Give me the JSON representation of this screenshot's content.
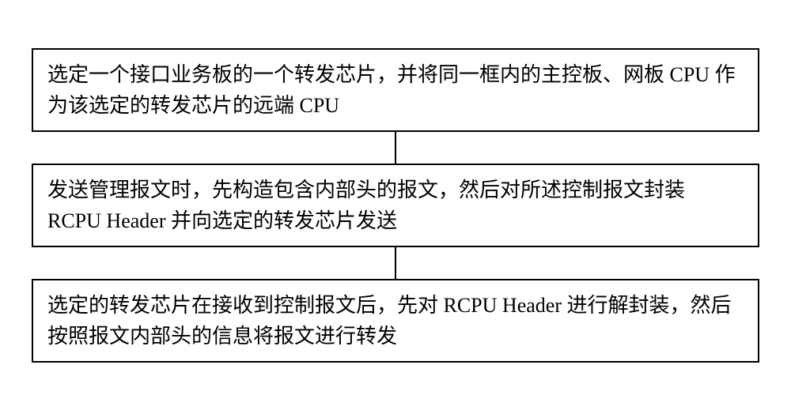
{
  "flowchart": {
    "type": "flowchart",
    "direction": "vertical",
    "background_color": "#ffffff",
    "box_border_color": "#000000",
    "box_border_width": 2,
    "connector_color": "#000000",
    "connector_width": 2,
    "connector_height": 40,
    "font_family": "SimSun",
    "font_size": 26,
    "boxes": [
      {
        "id": "step1",
        "text": "选定一个接口业务板的一个转发芯片，并将同一框内的主控板、网板 CPU 作为该选定的转发芯片的远端 CPU"
      },
      {
        "id": "step2",
        "text": "发送管理报文时，先构造包含内部头的报文，然后对所述控制报文封装 RCPU Header 并向选定的转发芯片发送"
      },
      {
        "id": "step3",
        "text": "选定的转发芯片在接收到控制报文后，先对 RCPU Header 进行解封装，然后按照报文内部头的信息将报文进行转发"
      }
    ]
  }
}
